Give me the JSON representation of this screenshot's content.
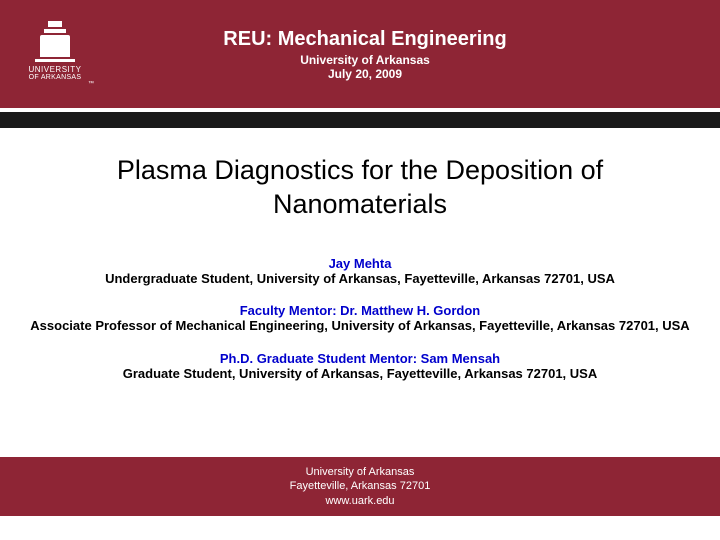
{
  "header": {
    "program": "REU: Mechanical Engineering",
    "institution": "University of Arkansas",
    "date": "July 20, 2009",
    "logo_university": "UNIVERSITY",
    "logo_arkansas": "ARKANSAS",
    "logo_of": "OF",
    "tm": "™"
  },
  "title": "Plasma Diagnostics for the Deposition of Nanomaterials",
  "author": {
    "name": "Jay Mehta",
    "desc": "Undergraduate Student, University of Arkansas, Fayetteville, Arkansas  72701, USA"
  },
  "mentor1": {
    "name": "Faculty Mentor: Dr. Matthew H. Gordon",
    "desc": "Associate Professor of Mechanical Engineering, University of Arkansas, Fayetteville, Arkansas  72701, USA"
  },
  "mentor2": {
    "name": "Ph.D. Graduate Student Mentor: Sam Mensah",
    "desc": "Graduate Student, University of Arkansas, Fayetteville, Arkansas  72701, USA"
  },
  "footer": {
    "line1": "University of Arkansas",
    "line2": "Fayetteville, Arkansas  72701",
    "line3": "www.uark.edu"
  }
}
